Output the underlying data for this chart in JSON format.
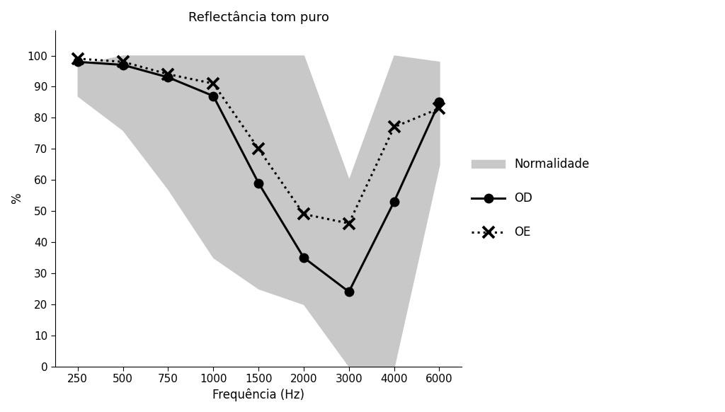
{
  "title": "Reflectância tom puro",
  "xlabel": "Frequência (Hz)",
  "ylabel": "%",
  "frequencies": [
    250,
    500,
    750,
    1000,
    1500,
    2000,
    3000,
    4000,
    6000
  ],
  "OD": [
    98,
    97,
    93,
    87,
    59,
    35,
    24,
    53,
    85
  ],
  "OE": [
    99,
    98,
    94,
    91,
    70,
    49,
    46,
    77,
    83
  ],
  "norm_upper": [
    97,
    100,
    100,
    100,
    100,
    100,
    60,
    100,
    98
  ],
  "norm_lower": [
    87,
    76,
    57,
    35,
    25,
    20,
    0,
    0,
    65
  ],
  "ylim": [
    0,
    108
  ],
  "yticks": [
    0,
    10,
    20,
    30,
    40,
    50,
    60,
    70,
    80,
    90,
    100
  ],
  "bg_color": "#ffffff",
  "norm_color": "#c8c8c8",
  "line_color": "#000000",
  "title_fontsize": 13,
  "label_fontsize": 12,
  "tick_fontsize": 11,
  "legend_fontsize": 12,
  "fig_width": 10.24,
  "fig_height": 5.82
}
